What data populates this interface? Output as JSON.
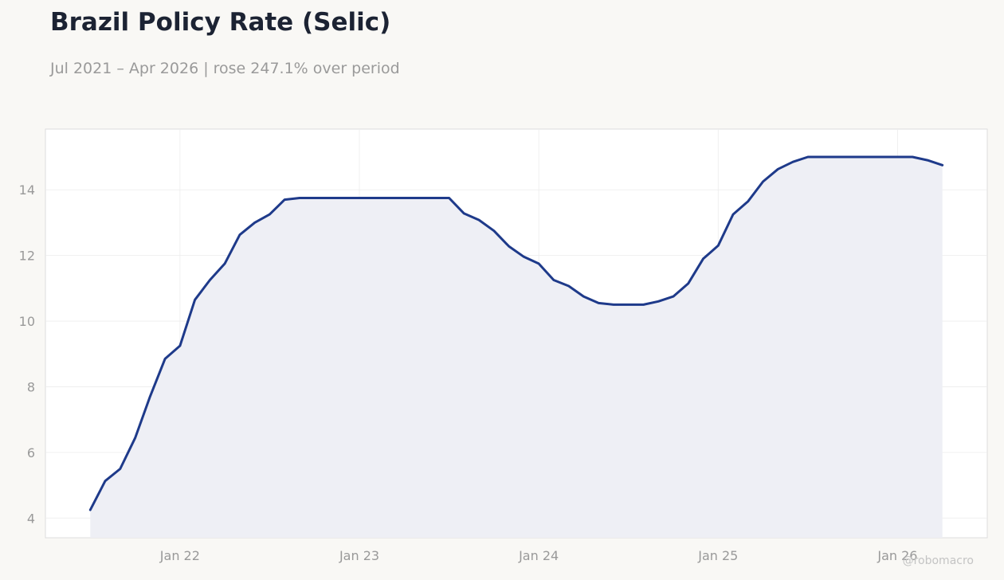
{
  "chart_data": {
    "type": "area",
    "title": "Brazil Policy Rate (Selic)",
    "subtitle": "Jul 2021 – Apr 2026 | rose 247.1% over period",
    "xlabel": "",
    "ylabel": "",
    "x_tick_labels": [
      "Jan 22",
      "Jan 23",
      "Jan 24",
      "Jan 25",
      "Jan 26"
    ],
    "x_tick_dates": [
      "2022-01",
      "2023-01",
      "2024-01",
      "2025-01",
      "2026-01"
    ],
    "y_ticks": [
      4,
      6,
      8,
      10,
      12,
      14
    ],
    "xlim": [
      "2021-04",
      "2026-07"
    ],
    "ylim": [
      3.4,
      15.85
    ],
    "grid": true,
    "legend": "none",
    "series": [
      {
        "color": "#1e3a8a",
        "fill": "#eeeff5",
        "points": [
          [
            "2021-07",
            4.25
          ],
          [
            "2021-08",
            5.13
          ],
          [
            "2021-09",
            5.5
          ],
          [
            "2021-10",
            6.44
          ],
          [
            "2021-11",
            7.7
          ],
          [
            "2021-12",
            8.85
          ],
          [
            "2022-01",
            9.25
          ],
          [
            "2022-02",
            10.65
          ],
          [
            "2022-03",
            11.25
          ],
          [
            "2022-04",
            11.75
          ],
          [
            "2022-05",
            12.63
          ],
          [
            "2022-06",
            13.0
          ],
          [
            "2022-07",
            13.25
          ],
          [
            "2022-08",
            13.7
          ],
          [
            "2022-09",
            13.75
          ],
          [
            "2022-10",
            13.75
          ],
          [
            "2022-11",
            13.75
          ],
          [
            "2022-12",
            13.75
          ],
          [
            "2023-01",
            13.75
          ],
          [
            "2023-02",
            13.75
          ],
          [
            "2023-03",
            13.75
          ],
          [
            "2023-04",
            13.75
          ],
          [
            "2023-05",
            13.75
          ],
          [
            "2023-06",
            13.75
          ],
          [
            "2023-07",
            13.75
          ],
          [
            "2023-08",
            13.28
          ],
          [
            "2023-09",
            13.08
          ],
          [
            "2023-10",
            12.75
          ],
          [
            "2023-11",
            12.28
          ],
          [
            "2023-12",
            11.96
          ],
          [
            "2024-01",
            11.75
          ],
          [
            "2024-02",
            11.25
          ],
          [
            "2024-03",
            11.07
          ],
          [
            "2024-04",
            10.75
          ],
          [
            "2024-05",
            10.55
          ],
          [
            "2024-06",
            10.5
          ],
          [
            "2024-07",
            10.5
          ],
          [
            "2024-08",
            10.5
          ],
          [
            "2024-09",
            10.6
          ],
          [
            "2024-10",
            10.75
          ],
          [
            "2024-11",
            11.15
          ],
          [
            "2024-12",
            11.9
          ],
          [
            "2025-01",
            12.3
          ],
          [
            "2025-02",
            13.25
          ],
          [
            "2025-03",
            13.65
          ],
          [
            "2025-04",
            14.25
          ],
          [
            "2025-05",
            14.63
          ],
          [
            "2025-06",
            14.85
          ],
          [
            "2025-07",
            15.0
          ],
          [
            "2025-08",
            15.0
          ],
          [
            "2025-09",
            15.0
          ],
          [
            "2025-10",
            15.0
          ],
          [
            "2025-11",
            15.0
          ],
          [
            "2025-12",
            15.0
          ],
          [
            "2026-01",
            15.0
          ],
          [
            "2026-02",
            15.0
          ],
          [
            "2026-03",
            14.9
          ],
          [
            "2026-04",
            14.75
          ]
        ]
      }
    ],
    "colors": {
      "background": "#f9f8f5",
      "plot_background": "#ffffff",
      "plot_border": "#dddddd",
      "grid": "#ececec",
      "tick_label": "#999999"
    }
  },
  "watermark": "@robomacro"
}
